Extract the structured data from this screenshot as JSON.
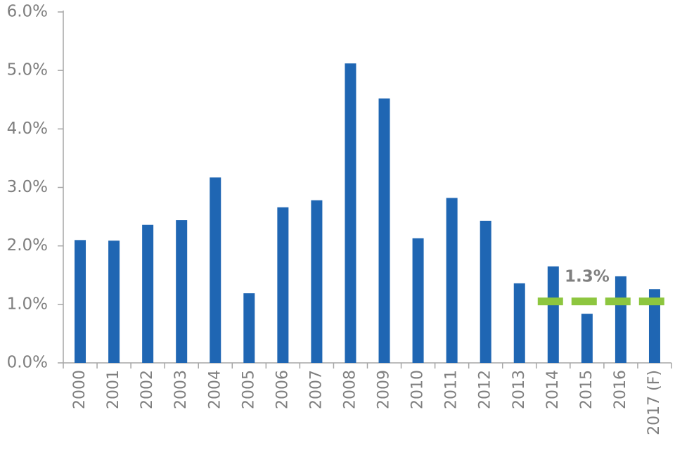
{
  "chart_data": {
    "type": "bar",
    "categories": [
      "2000",
      "2001",
      "2002",
      "2003",
      "2004",
      "2005",
      "2006",
      "2007",
      "2008",
      "2009",
      "2010",
      "2011",
      "2012",
      "2013",
      "2014",
      "2015",
      "2016",
      "2017 (F)"
    ],
    "values": [
      2.1,
      2.09,
      2.36,
      2.44,
      3.17,
      1.19,
      2.66,
      2.78,
      5.12,
      4.52,
      2.13,
      2.82,
      2.43,
      1.36,
      1.65,
      0.84,
      1.48,
      1.26
    ],
    "color": "#1f66b3",
    "ylim": [
      0,
      6
    ],
    "yticks": [
      {
        "value": 0,
        "label": "0.0%"
      },
      {
        "value": 1,
        "label": "1.0%"
      },
      {
        "value": 2,
        "label": "2.0%"
      },
      {
        "value": 3,
        "label": "3.0%"
      },
      {
        "value": 4,
        "label": "4.0%"
      },
      {
        "value": 5,
        "label": "5.0%"
      },
      {
        "value": 6,
        "label": "6.0%"
      }
    ],
    "reference_line": {
      "value": 1.05,
      "color": "#8dc63f"
    },
    "annotation": "1.3%"
  }
}
